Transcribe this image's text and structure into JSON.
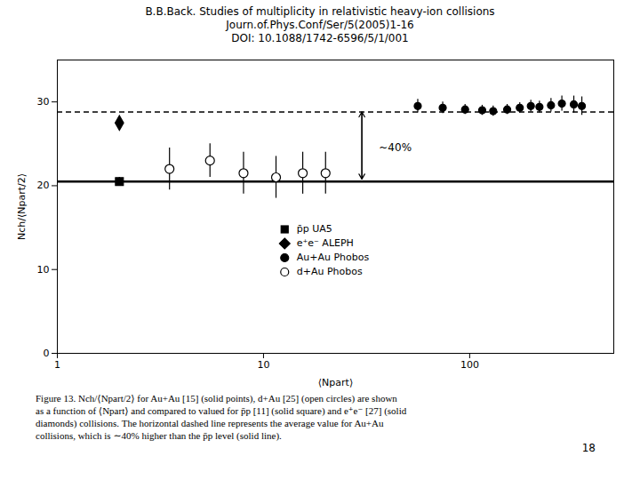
{
  "chart_data": {
    "type": "scatter",
    "title": [
      "B.B.Back. Studies of multiplicity in relativistic heavy-ion collisions",
      "Journ.of.Phys.Conf/Ser/5(2005)1-16",
      "DOI: 10.1088/1742-6596/5/1/001"
    ],
    "xlabel": "⟨Npart⟩",
    "ylabel": "Nch/⟨Npart/2⟩",
    "log": "x",
    "xlim": [
      1,
      500
    ],
    "ylim": [
      0,
      35
    ],
    "xticks": [
      1,
      10,
      100
    ],
    "yticks": [
      0,
      10,
      20,
      30
    ],
    "grid": false,
    "legend": "center",
    "series": [
      {
        "name": "p̄p UA5",
        "color": "#000000",
        "marker": "square",
        "x": [
          2.0
        ],
        "values": [
          20.5
        ],
        "yerr": [
          0.5
        ]
      },
      {
        "name": "e⁺e⁻ ALEPH",
        "color": "#000000",
        "marker": "diamond",
        "x": [
          2.0
        ],
        "values": [
          27.5
        ],
        "yerr": [
          0.5
        ]
      },
      {
        "name": "Au+Au Phobos",
        "color": "#000000",
        "marker": "circle",
        "x": [
          56,
          74,
          95,
          115,
          130,
          152,
          175,
          198,
          218,
          248,
          280,
          320,
          350
        ],
        "values": [
          29.5,
          29.3,
          29.1,
          29.0,
          28.9,
          29.1,
          29.3,
          29.5,
          29.4,
          29.6,
          29.8,
          29.7,
          29.5
        ],
        "yerr": [
          0.8,
          0.7,
          0.6,
          0.6,
          0.6,
          0.6,
          0.6,
          0.7,
          0.7,
          0.8,
          0.9,
          1.0,
          1.1
        ]
      },
      {
        "name": "d+Au Phobos",
        "color": "#000000",
        "marker": "open_circle",
        "x": [
          3.5,
          5.5,
          8.0,
          11.5,
          15.5,
          20.0
        ],
        "values": [
          22.0,
          23.0,
          21.5,
          21.0,
          21.5,
          21.5
        ],
        "yerr": [
          2.5,
          2.0,
          2.5,
          2.5,
          2.5,
          2.5
        ]
      }
    ],
    "lines": [
      {
        "y": 20.5,
        "color": "#000000",
        "line_style": "solid"
      },
      {
        "y": 28.8,
        "color": "#000000",
        "line_style": "dashed"
      }
    ],
    "arrows": [
      {
        "x": 30,
        "y1": 20.8,
        "y2": 28.8,
        "color": "#000000"
      }
    ],
    "annotations": [
      {
        "text": "~40%",
        "x": 36.3,
        "y": 24.5
      }
    ],
    "caption": [
      "Figure 13.  Nch/⟨Npart/2⟩ for Au+Au [15] (solid points), d+Au [25] (open circles) are shown",
      "as a function of ⟨Npart⟩ and compared to valued for p̄p [11] (solid square) and e⁺e⁻ [27] (solid",
      "diamonds) collisions.  The horizontal dashed line represents the average value for Au+Au",
      "collisions, which is ∼40% higher than the p̄p level (solid line)."
    ],
    "page_number": "18"
  }
}
